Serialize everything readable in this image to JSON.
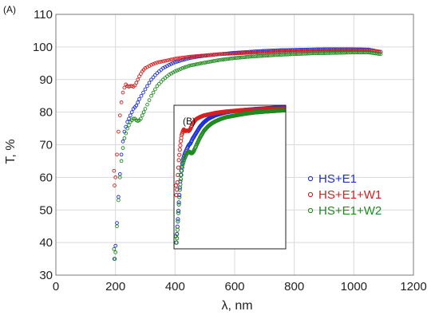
{
  "chart_data": [
    {
      "type": "scatter",
      "panel_label": "(A)",
      "xlabel": "λ, nm",
      "ylabel": "T, %",
      "xlim": [
        0,
        1200
      ],
      "ylim": [
        30,
        110
      ],
      "x_ticks": [
        0,
        200,
        400,
        600,
        800,
        1000,
        1200
      ],
      "y_ticks": [
        30,
        40,
        50,
        60,
        70,
        80,
        90,
        100,
        110
      ],
      "grid": true,
      "legend_position": "right",
      "marker": "open-circle",
      "series": [
        {
          "name": "HS+E1",
          "color": "#1f2fd6",
          "points": [
            [
              196,
              35
            ],
            [
              200,
              39
            ],
            [
              205,
              46
            ],
            [
              210,
              54
            ],
            [
              215,
              61
            ],
            [
              220,
              67
            ],
            [
              225,
              71
            ],
            [
              230,
              74
            ],
            [
              240,
              77
            ],
            [
              250,
              79
            ],
            [
              260,
              81
            ],
            [
              270,
              82
            ],
            [
              280,
              84
            ],
            [
              300,
              87
            ],
            [
              320,
              90
            ],
            [
              340,
              92
            ],
            [
              360,
              93.5
            ],
            [
              380,
              94.5
            ],
            [
              400,
              95.3
            ],
            [
              425,
              96
            ],
            [
              450,
              96.6
            ],
            [
              475,
              97
            ],
            [
              500,
              97.3
            ],
            [
              550,
              97.8
            ],
            [
              600,
              98.2
            ],
            [
              650,
              98.5
            ],
            [
              700,
              98.8
            ],
            [
              750,
              99
            ],
            [
              800,
              99.1
            ],
            [
              850,
              99.2
            ],
            [
              900,
              99.3
            ],
            [
              950,
              99.3
            ],
            [
              1000,
              99.3
            ],
            [
              1050,
              99.2
            ],
            [
              1090,
              98.5
            ]
          ]
        },
        {
          "name": "HS+E1+W1",
          "color": "#d42020",
          "points": [
            [
              195,
              62
            ],
            [
              197,
              57.5
            ],
            [
              200,
              60
            ],
            [
              205,
              67
            ],
            [
              210,
              74
            ],
            [
              215,
              79
            ],
            [
              220,
              83
            ],
            [
              225,
              86
            ],
            [
              230,
              87.5
            ],
            [
              235,
              88.5
            ],
            [
              240,
              88
            ],
            [
              245,
              87.8
            ],
            [
              250,
              88
            ],
            [
              255,
              88
            ],
            [
              260,
              87.8
            ],
            [
              265,
              88.2
            ],
            [
              270,
              89
            ],
            [
              280,
              91
            ],
            [
              290,
              92.5
            ],
            [
              300,
              93.5
            ],
            [
              320,
              94.5
            ],
            [
              340,
              95.2
            ],
            [
              360,
              95.6
            ],
            [
              380,
              96
            ],
            [
              400,
              96.4
            ],
            [
              425,
              96.7
            ],
            [
              450,
              97
            ],
            [
              500,
              97.4
            ],
            [
              550,
              97.8
            ],
            [
              600,
              98
            ],
            [
              650,
              98.2
            ],
            [
              700,
              98.4
            ],
            [
              750,
              98.6
            ],
            [
              800,
              98.7
            ],
            [
              850,
              98.8
            ],
            [
              900,
              98.9
            ],
            [
              950,
              99
            ],
            [
              1000,
              99
            ],
            [
              1050,
              99
            ],
            [
              1090,
              98.5
            ]
          ]
        },
        {
          "name": "HS+E1+W2",
          "color": "#1f8a1f",
          "points": [
            [
              195,
              38
            ],
            [
              198,
              35
            ],
            [
              200,
              37
            ],
            [
              205,
              45
            ],
            [
              210,
              53
            ],
            [
              215,
              60
            ],
            [
              220,
              65
            ],
            [
              225,
              69
            ],
            [
              230,
              72
            ],
            [
              240,
              75
            ],
            [
              250,
              77
            ],
            [
              260,
              78
            ],
            [
              265,
              78
            ],
            [
              270,
              77.5
            ],
            [
              275,
              77.3
            ],
            [
              280,
              77.5
            ],
            [
              285,
              78
            ],
            [
              290,
              79
            ],
            [
              300,
              81
            ],
            [
              320,
              85
            ],
            [
              340,
              88
            ],
            [
              360,
              90
            ],
            [
              380,
              91.5
            ],
            [
              400,
              92.5
            ],
            [
              425,
              93.5
            ],
            [
              450,
              94.3
            ],
            [
              500,
              95.2
            ],
            [
              550,
              96
            ],
            [
              600,
              96.6
            ],
            [
              650,
              97
            ],
            [
              700,
              97.3
            ],
            [
              750,
              97.6
            ],
            [
              800,
              97.8
            ],
            [
              850,
              98
            ],
            [
              900,
              98.1
            ],
            [
              950,
              98.2
            ],
            [
              1000,
              98.3
            ],
            [
              1050,
              98.3
            ],
            [
              1090,
              97.8
            ]
          ]
        }
      ]
    },
    {
      "type": "scatter",
      "panel_label": "(B)",
      "inset": true,
      "xlim": [
        185,
        760
      ],
      "ylim": [
        32,
        100
      ],
      "x_ticks": [],
      "y_ticks": [],
      "series_ref": [
        "HS+E1",
        "HS+E1+W1",
        "HS+E1+W2"
      ]
    }
  ]
}
